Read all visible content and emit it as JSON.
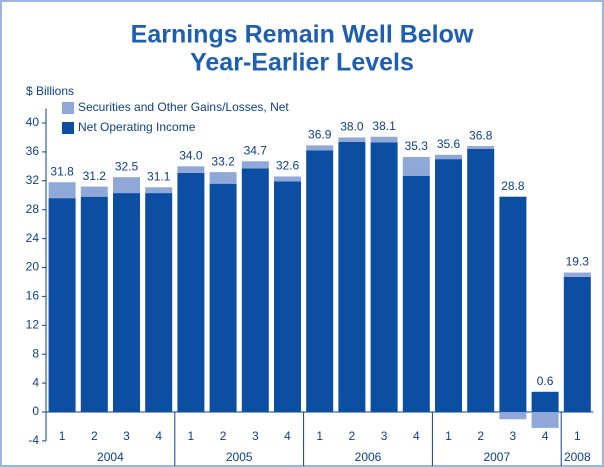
{
  "chart_data": {
    "type": "stacked_bar",
    "title": [
      "Earnings Remain Well Below",
      "Year-Earlier Levels"
    ],
    "y_label": "$ Billions",
    "categories": [
      "1",
      "2",
      "3",
      "4",
      "1",
      "2",
      "3",
      "4",
      "1",
      "2",
      "3",
      "4",
      "1",
      "2",
      "3",
      "4",
      "1"
    ],
    "years": [
      "2004",
      "2004",
      "2004",
      "2004",
      "2005",
      "2005",
      "2005",
      "2005",
      "2006",
      "2006",
      "2006",
      "2006",
      "2007",
      "2007",
      "2007",
      "2007",
      "2008"
    ],
    "series": [
      {
        "name": "Net Operating Income",
        "color": "#0b4ea2",
        "values": [
          29.6,
          29.8,
          30.3,
          30.3,
          33.1,
          31.6,
          33.7,
          31.9,
          36.2,
          37.4,
          37.3,
          32.7,
          35.0,
          36.4,
          29.8,
          2.8,
          18.7
        ]
      },
      {
        "name": "Securities and Other Gains/Losses, Net",
        "color": "#8fa8d8",
        "values": [
          2.2,
          1.4,
          2.2,
          0.8,
          0.9,
          1.6,
          1.0,
          0.7,
          0.7,
          0.6,
          0.8,
          2.6,
          0.6,
          0.4,
          -1.0,
          -2.2,
          0.6
        ]
      }
    ],
    "total_labels": [
      "31.8",
      "31.2",
      "32.5",
      "31.1",
      "34.0",
      "33.2",
      "34.7",
      "32.6",
      "36.9",
      "38.0",
      "38.1",
      "35.3",
      "35.6",
      "36.8",
      "28.8",
      "0.6",
      "19.3"
    ],
    "ylim": [
      -4,
      42
    ],
    "yticks": [
      -4,
      0,
      4,
      8,
      12,
      16,
      20,
      24,
      28,
      32,
      36,
      40
    ],
    "legend_order": [
      1,
      0
    ]
  }
}
